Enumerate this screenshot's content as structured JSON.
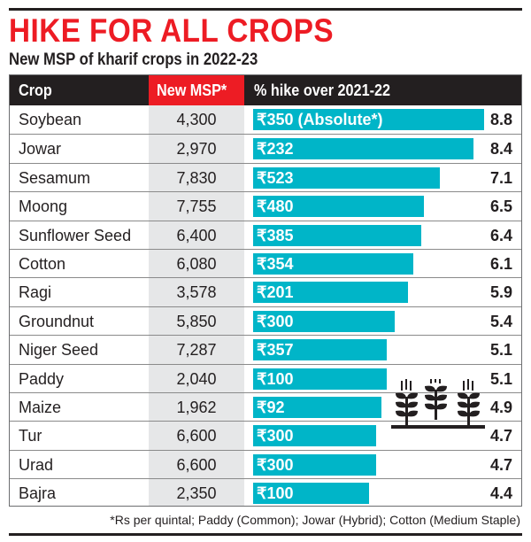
{
  "title": "HIKE FOR ALL CROPS",
  "subtitle": "New MSP of kharif crops in 2022-23",
  "footnote": "*Rs per quintal; Paddy (Common); Jowar (Hybrid); Cotton (Medium Staple)",
  "colors": {
    "title": "#ed1c24",
    "bar": "#00b5c8",
    "header": "#231f20",
    "msp_header": "#ed1c24"
  },
  "chart_data": {
    "type": "bar",
    "title": "HIKE FOR ALL CROPS",
    "subtitle": "New MSP of kharif crops in 2022-23",
    "columns": [
      "Crop",
      "New MSP*",
      "% hike over 2021-22"
    ],
    "rows": [
      {
        "crop": "Soybean",
        "msp": "4,300",
        "hike_abs": "₹350 (Absolute*)",
        "pct": 8.8
      },
      {
        "crop": "Jowar",
        "msp": "2,970",
        "hike_abs": "₹232",
        "pct": 8.4
      },
      {
        "crop": "Sesamum",
        "msp": "7,830",
        "hike_abs": "₹523",
        "pct": 7.1
      },
      {
        "crop": "Moong",
        "msp": "7,755",
        "hike_abs": "₹480",
        "pct": 6.5
      },
      {
        "crop": "Sunflower Seed",
        "msp": "6,400",
        "hike_abs": "₹385",
        "pct": 6.4
      },
      {
        "crop": "Cotton",
        "msp": "6,080",
        "hike_abs": "₹354",
        "pct": 6.1
      },
      {
        "crop": "Ragi",
        "msp": "3,578",
        "hike_abs": "₹201",
        "pct": 5.9
      },
      {
        "crop": "Groundnut",
        "msp": "5,850",
        "hike_abs": "₹300",
        "pct": 5.4
      },
      {
        "crop": "Niger Seed",
        "msp": "7,287",
        "hike_abs": "₹357",
        "pct": 5.1
      },
      {
        "crop": "Paddy",
        "msp": "2,040",
        "hike_abs": "₹100",
        "pct": 5.1
      },
      {
        "crop": "Maize",
        "msp": "1,962",
        "hike_abs": "₹92",
        "pct": 4.9
      },
      {
        "crop": "Tur",
        "msp": "6,600",
        "hike_abs": "₹300",
        "pct": 4.7
      },
      {
        "crop": "Urad",
        "msp": "6,600",
        "hike_abs": "₹300",
        "pct": 4.7
      },
      {
        "crop": "Bajra",
        "msp": "2,350",
        "hike_abs": "₹100",
        "pct": 4.4
      }
    ]
  }
}
